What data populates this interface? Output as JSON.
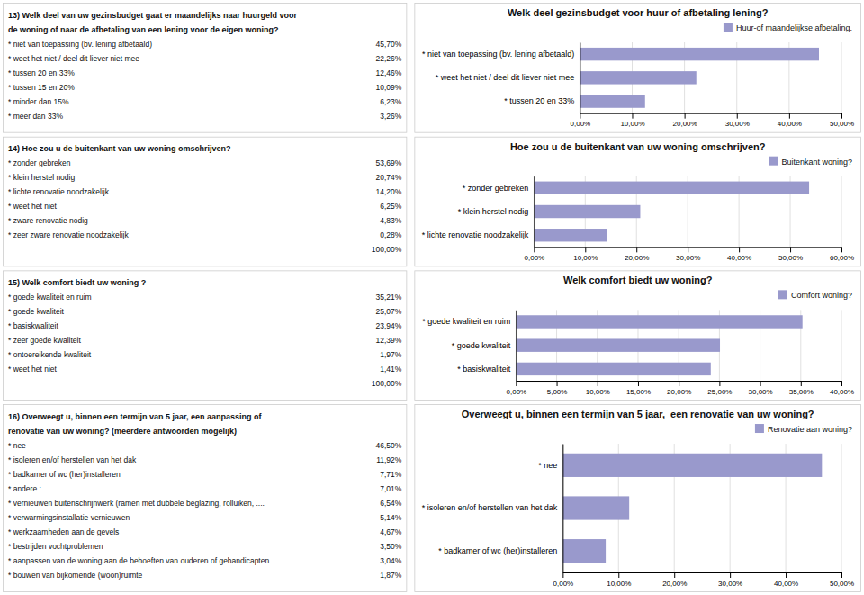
{
  "chart_data": [
    {
      "type": "table",
      "title": "13) Welk deel van uw gezinsbudget gaat er maandelijks naar huurgeld voor\nde woning of naar de afbetaling van een lening voor de eigen woning?",
      "categories": [
        "* niet van toepassing (bv. lening afbetaald)",
        "* weet het niet / deel dit liever niet mee",
        "* tussen 20 en 33%",
        "* tussen 15 en 20%",
        "* minder dan 15%",
        "* meer dan 33%"
      ],
      "values": [
        45.7,
        22.26,
        12.46,
        10.09,
        6.23,
        3.26
      ],
      "value_labels": [
        "45,70%",
        "22,26%",
        "12,46%",
        "10,09%",
        "6,23%",
        "3,26%"
      ]
    },
    {
      "type": "bar",
      "orientation": "horizontal",
      "title": "Welk deel gezinsbudget voor huur of afbetaling lening?",
      "categories": [
        "* tussen 20 en 33%",
        "* weet het niet / deel dit liever niet mee",
        "* niet van toepassing (bv. lening afbetaald)"
      ],
      "series": [
        {
          "name": "Huur-of maandelijkse afbetaling.",
          "color": "#9999cc",
          "values": [
            12.46,
            22.26,
            45.7
          ]
        }
      ],
      "xlim": [
        0,
        50
      ],
      "xticks": [
        {
          "value": 0,
          "label": "0,00%"
        },
        {
          "value": 10,
          "label": "10,00%"
        },
        {
          "value": 20,
          "label": "20,00%"
        },
        {
          "value": 30,
          "label": "30,00%"
        },
        {
          "value": 40,
          "label": "40,00%"
        },
        {
          "value": 50,
          "label": "50,00%"
        }
      ],
      "grid": true,
      "legend": "top-right"
    },
    {
      "type": "table",
      "title": "14) Hoe zou u de buitenkant van uw woning omschrijven?",
      "categories": [
        "* zonder gebreken",
        "* klein herstel nodig",
        "* lichte renovatie noodzakelijk",
        "* weet het niet",
        "* zware renovatie nodig",
        "* zeer zware renovatie noodzakelijk"
      ],
      "values": [
        53.69,
        20.74,
        14.2,
        6.25,
        4.83,
        0.28
      ],
      "value_labels": [
        "53,69%",
        "20,74%",
        "14,20%",
        "6,25%",
        "4,83%",
        "0,28%"
      ],
      "annotations": [
        "100,00%"
      ]
    },
    {
      "type": "bar",
      "orientation": "horizontal",
      "title": "Hoe zou u de buitenkant van uw woning omschrijven?",
      "categories": [
        "* lichte renovatie noodzakelijk",
        "* klein herstel nodig",
        "* zonder gebreken"
      ],
      "series": [
        {
          "name": "Buitenkant woning?",
          "color": "#9999cc",
          "values": [
            14.2,
            20.74,
            53.69
          ]
        }
      ],
      "xlim": [
        0,
        60
      ],
      "xticks": [
        {
          "value": 0,
          "label": "0,00%"
        },
        {
          "value": 10,
          "label": "10,00%"
        },
        {
          "value": 20,
          "label": "20,00%"
        },
        {
          "value": 30,
          "label": "30,00%"
        },
        {
          "value": 40,
          "label": "40,00%"
        },
        {
          "value": 50,
          "label": "50,00%"
        },
        {
          "value": 60,
          "label": "60,00%"
        }
      ],
      "grid": true,
      "legend": "top-right"
    },
    {
      "type": "table",
      "title": "15) Welk comfort biedt uw woning ?",
      "categories": [
        "* goede kwaliteit en ruim",
        "* goede kwaliteit",
        "* basiskwaliteit",
        "* zeer goede kwaliteit",
        "* ontoereikende kwaliteit",
        "* weet het niet"
      ],
      "values": [
        35.21,
        25.07,
        23.94,
        12.39,
        1.97,
        1.41
      ],
      "value_labels": [
        "35,21%",
        "25,07%",
        "23,94%",
        "12,39%",
        "1,97%",
        "1,41%"
      ],
      "annotations": [
        "100,00%"
      ]
    },
    {
      "type": "bar",
      "orientation": "horizontal",
      "title": "Welk comfort biedt uw woning?",
      "categories": [
        "* basiskwaliteit",
        "* goede kwaliteit",
        "* goede kwaliteit en ruim"
      ],
      "series": [
        {
          "name": "Comfort woning?",
          "color": "#9999cc",
          "values": [
            23.94,
            25.07,
            35.21
          ]
        }
      ],
      "xlim": [
        0,
        40
      ],
      "xticks": [
        {
          "value": 0,
          "label": "0,00%"
        },
        {
          "value": 5,
          "label": "5,00%"
        },
        {
          "value": 10,
          "label": "10,00%"
        },
        {
          "value": 15,
          "label": "15,00%"
        },
        {
          "value": 20,
          "label": "20,00%"
        },
        {
          "value": 25,
          "label": "25,00%"
        },
        {
          "value": 30,
          "label": "30,00%"
        },
        {
          "value": 35,
          "label": "35,00%"
        },
        {
          "value": 40,
          "label": "40,00%"
        }
      ],
      "grid": true,
      "legend": "top-right"
    },
    {
      "type": "table",
      "title": "16) Overweegt u, binnen een termijn van 5 jaar, een aanpassing of\nrenovatie van uw woning? (meerdere antwoorden mogelijk)",
      "categories": [
        "* nee",
        "* isoleren en/of herstellen van het dak",
        "* badkamer of wc (her)installeren",
        "* andere :",
        "* vernieuwen buitenschrijnwerk (ramen met dubbele beglazing, rolluiken, ....",
        "* verwarmingsinstallatie vernieuwen",
        "* werkzaamheden aan de gevels",
        "* bestrijden vochtproblemen",
        "* aanpassen van de woning aan de behoeften van ouderen of gehandicapten",
        "* bouwen van bijkomende (woon)ruimte"
      ],
      "values": [
        46.5,
        11.92,
        7.71,
        7.01,
        6.54,
        5.14,
        4.67,
        3.5,
        3.04,
        1.87
      ],
      "value_labels": [
        "46,50%",
        "11,92%",
        "7,71%",
        "7,01%",
        "6,54%",
        "5,14%",
        "4,67%",
        "3,50%",
        "3,04%",
        "1,87%"
      ]
    },
    {
      "type": "bar",
      "orientation": "horizontal",
      "title": "Overweegt u, binnen een termijn van 5 jaar,  een renovatie van uw woning?",
      "categories": [
        "* badkamer of wc (her)installeren",
        "* isoleren en/of herstellen van het dak",
        "* nee"
      ],
      "series": [
        {
          "name": "Renovatie aan woning?",
          "color": "#9999cc",
          "values": [
            7.71,
            11.92,
            46.5
          ]
        }
      ],
      "xlim": [
        0,
        50
      ],
      "xticks": [
        {
          "value": 0,
          "label": "0,00%"
        },
        {
          "value": 10,
          "label": "10,00%"
        },
        {
          "value": 20,
          "label": "20,00%"
        },
        {
          "value": 30,
          "label": "30,00%"
        },
        {
          "value": 40,
          "label": "40,00%"
        },
        {
          "value": 50,
          "label": "50,00%"
        }
      ],
      "grid": true,
      "legend": "top-right"
    }
  ]
}
